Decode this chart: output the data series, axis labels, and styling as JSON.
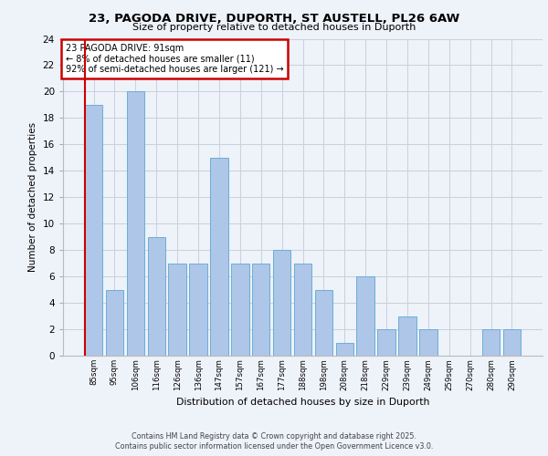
{
  "title_line1": "23, PAGODA DRIVE, DUPORTH, ST AUSTELL, PL26 6AW",
  "title_line2": "Size of property relative to detached houses in Duporth",
  "xlabel": "Distribution of detached houses by size in Duporth",
  "ylabel": "Number of detached properties",
  "bar_labels": [
    "85sqm",
    "95sqm",
    "106sqm",
    "116sqm",
    "126sqm",
    "136sqm",
    "147sqm",
    "157sqm",
    "167sqm",
    "177sqm",
    "188sqm",
    "198sqm",
    "208sqm",
    "218sqm",
    "229sqm",
    "239sqm",
    "249sqm",
    "259sqm",
    "270sqm",
    "280sqm",
    "290sqm"
  ],
  "bar_values": [
    19,
    5,
    20,
    9,
    7,
    7,
    15,
    7,
    7,
    8,
    7,
    5,
    1,
    6,
    2,
    3,
    2,
    0,
    0,
    2,
    2
  ],
  "bar_color": "#aec6e8",
  "bar_edgecolor": "#6baed6",
  "highlight_color": "#cc0000",
  "annotation_title": "23 PAGODA DRIVE: 91sqm",
  "annotation_line2": "← 8% of detached houses are smaller (11)",
  "annotation_line3": "92% of semi-detached houses are larger (121) →",
  "annotation_box_edgecolor": "#cc0000",
  "ylim": [
    0,
    24
  ],
  "yticks": [
    0,
    2,
    4,
    6,
    8,
    10,
    12,
    14,
    16,
    18,
    20,
    22,
    24
  ],
  "background_color": "#eef2f9",
  "grid_color": "#c8d0df",
  "footer_line1": "Contains HM Land Registry data © Crown copyright and database right 2025.",
  "footer_line2": "Contains public sector information licensed under the Open Government Licence v3.0."
}
